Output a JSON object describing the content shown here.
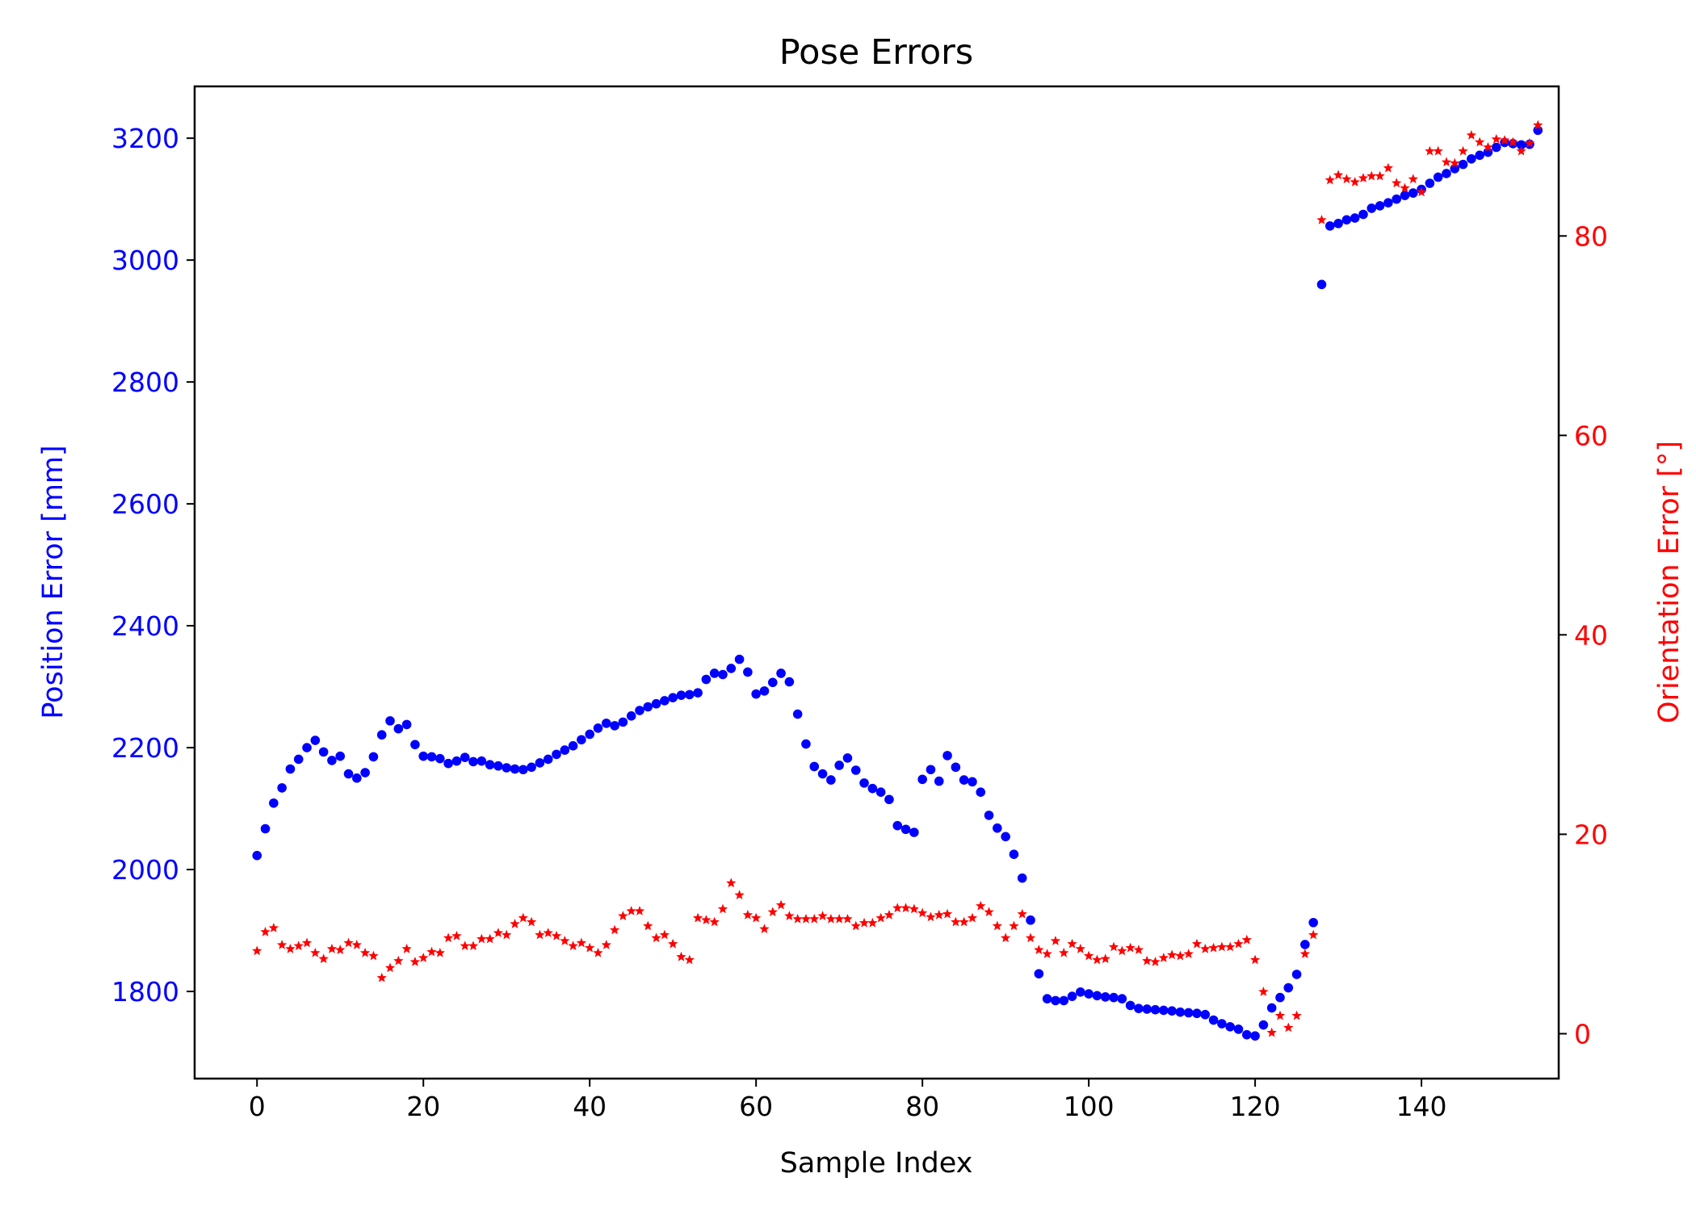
{
  "chart_data": {
    "type": "scatter",
    "title": "Pose Errors",
    "xlabel": "Sample Index",
    "ylabel_left": "Position Error [mm]",
    "ylabel_right": "Orientation Error [°]",
    "xlim": [
      -7.5,
      156.5
    ],
    "ylim_left": [
      1657,
      3285
    ],
    "ylim_right": [
      -4.5,
      95
    ],
    "x_ticks": [
      0,
      20,
      40,
      60,
      80,
      100,
      120,
      140
    ],
    "y_ticks_left": [
      1800,
      2000,
      2200,
      2400,
      2600,
      2800,
      3000,
      3200
    ],
    "y_ticks_right": [
      0,
      20,
      40,
      60,
      80
    ],
    "grid": false,
    "colors": {
      "left_axis": "#0000ff",
      "right_axis": "#ff0000"
    },
    "series": [
      {
        "axis": "left",
        "marker": "circle",
        "color": "#0000ff",
        "values": [
          2023,
          2067,
          2109,
          2134,
          2165,
          2181,
          2200,
          2212,
          2193,
          2179,
          2186,
          2157,
          2150,
          2159,
          2185,
          2221,
          2244,
          2231,
          2238,
          2205,
          2186,
          2185,
          2182,
          2174,
          2178,
          2184,
          2177,
          2178,
          2172,
          2170,
          2167,
          2165,
          2164,
          2168,
          2175,
          2181,
          2189,
          2196,
          2203,
          2213,
          2222,
          2232,
          2240,
          2236,
          2242,
          2252,
          2261,
          2267,
          2272,
          2277,
          2282,
          2286,
          2287,
          2290,
          2312,
          2322,
          2320,
          2330,
          2345,
          2324,
          2288,
          2293,
          2307,
          2322,
          2308,
          2255,
          2206,
          2169,
          2157,
          2147,
          2171,
          2183,
          2163,
          2142,
          2133,
          2127,
          2115,
          2072,
          2066,
          2061,
          2148,
          2164,
          2145,
          2187,
          2168,
          2147,
          2144,
          2127,
          2089,
          2068,
          2054,
          2025,
          1986,
          1917,
          1829,
          1788,
          1785,
          1785,
          1792,
          1799,
          1796,
          1793,
          1791,
          1790,
          1788,
          1777,
          1772,
          1771,
          1770,
          1769,
          1768,
          1766,
          1765,
          1764,
          1762,
          1753,
          1747,
          1742,
          1738,
          1729,
          1727,
          1745,
          1773,
          1790,
          1806,
          1828,
          1877,
          1913,
          2960,
          3056,
          3060,
          3066,
          3069,
          3075,
          3085,
          3089,
          3094,
          3100,
          3106,
          3110,
          3116,
          3126,
          3136,
          3142,
          3150,
          3157,
          3166,
          3172,
          3177,
          3185,
          3193,
          3191,
          3189,
          3190,
          3213
        ]
      },
      {
        "axis": "right",
        "marker": "star",
        "color": "#ff0000",
        "values": [
          8.3,
          10.2,
          10.6,
          8.9,
          8.5,
          8.8,
          9.1,
          8.1,
          7.5,
          8.5,
          8.4,
          9.1,
          8.9,
          8.1,
          7.8,
          5.6,
          6.6,
          7.3,
          8.5,
          7.2,
          7.6,
          8.2,
          8.1,
          9.6,
          9.8,
          8.8,
          8.8,
          9.5,
          9.5,
          10.1,
          9.9,
          11.0,
          11.6,
          11.2,
          9.9,
          10.1,
          9.8,
          9.3,
          8.8,
          9.1,
          8.6,
          8.1,
          8.9,
          10.4,
          11.8,
          12.3,
          12.3,
          10.8,
          9.6,
          9.9,
          9.0,
          7.7,
          7.4,
          11.6,
          11.4,
          11.2,
          12.5,
          15.1,
          13.9,
          11.9,
          11.6,
          10.5,
          12.2,
          12.9,
          11.8,
          11.5,
          11.5,
          11.5,
          11.8,
          11.5,
          11.5,
          11.5,
          10.8,
          11.1,
          11.1,
          11.6,
          11.9,
          12.6,
          12.6,
          12.5,
          12.1,
          11.7,
          11.9,
          12.0,
          11.2,
          11.2,
          11.6,
          12.8,
          12.2,
          10.8,
          9.6,
          10.8,
          12.0,
          9.6,
          8.4,
          8.0,
          9.3,
          8.1,
          9.0,
          8.5,
          7.8,
          7.4,
          7.5,
          8.7,
          8.3,
          8.6,
          8.4,
          7.3,
          7.2,
          7.6,
          7.9,
          7.8,
          8.0,
          9.0,
          8.5,
          8.6,
          8.7,
          8.7,
          9.0,
          9.4,
          7.4,
          4.2,
          0.1,
          1.8,
          0.6,
          1.8,
          8.0,
          9.9,
          81.6,
          85.6,
          86.1,
          85.7,
          85.4,
          85.8,
          86.0,
          86.0,
          86.8,
          85.3,
          84.8,
          85.7,
          84.4,
          88.5,
          88.5,
          87.4,
          87.3,
          88.5,
          90.1,
          89.4,
          88.9,
          89.7,
          89.6,
          89.4,
          88.5,
          89.3,
          91.1
        ]
      }
    ]
  }
}
